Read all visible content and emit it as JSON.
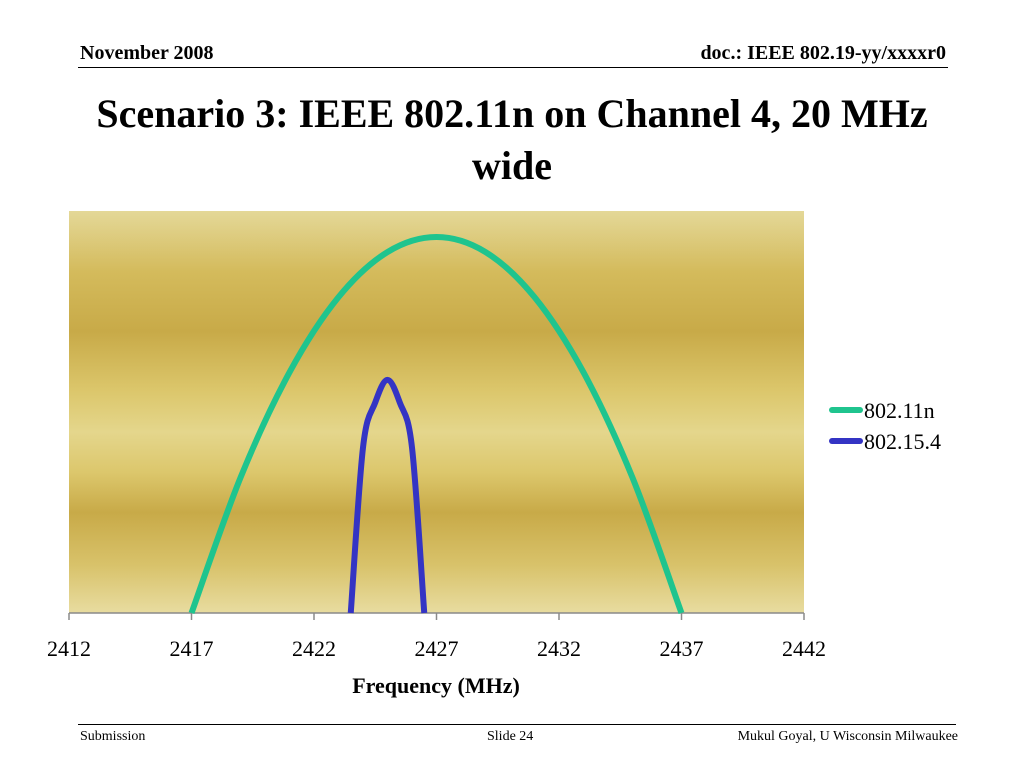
{
  "header": {
    "date": "November 2008",
    "doc_id": "doc.: IEEE 802.19-yy/xxxxr0"
  },
  "slide": {
    "title": "Scenario 3: IEEE 802.11n on Channel 4, 20 MHz wide"
  },
  "footer": {
    "left": "Submission",
    "center": "Slide 24",
    "right": "Mukul Goyal, U Wisconsin Milwaukee"
  },
  "colors": {
    "series_80211n": "#1fc48e",
    "series_802154": "#3434c4",
    "plot_band_light": "#e4d68c",
    "plot_band_dark": "#c8aa48"
  },
  "chart_data": {
    "type": "line",
    "title": "",
    "xlabel": "Frequency (MHz)",
    "ylabel": "",
    "xlim": [
      2412,
      2442
    ],
    "ylim": [
      0,
      1
    ],
    "x_ticks": [
      2412,
      2417,
      2422,
      2427,
      2432,
      2437,
      2442
    ],
    "grid": false,
    "legend_position": "right",
    "series": [
      {
        "name": "802.11n",
        "x": [
          2417,
          2419,
          2421,
          2423,
          2425,
          2427,
          2429,
          2431,
          2433,
          2435,
          2437
        ],
        "y": [
          0,
          0.36,
          0.64,
          0.84,
          0.96,
          1.0,
          0.96,
          0.84,
          0.64,
          0.36,
          0
        ]
      },
      {
        "name": "802.15.4",
        "x": [
          2423.5,
          2424.0,
          2424.5,
          2425.0,
          2425.5,
          2426.0,
          2426.5
        ],
        "y": [
          0,
          0.44,
          0.56,
          0.62,
          0.56,
          0.44,
          0
        ]
      }
    ]
  }
}
